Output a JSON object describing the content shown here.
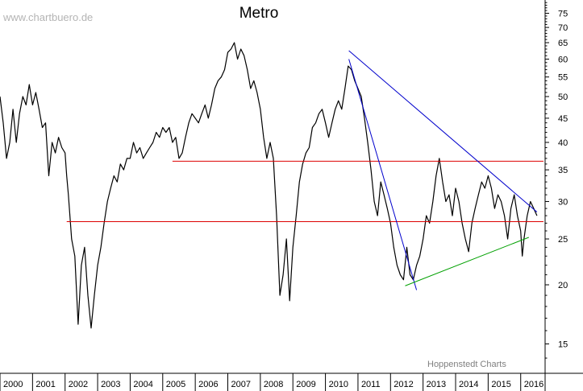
{
  "watermark": "www.chartbuero.de",
  "credit": "Hoppenstedt Charts",
  "chart_data": {
    "type": "line",
    "title": "Metro",
    "xlabel": "",
    "ylabel": "",
    "y_scale": "log",
    "ylim": [
      13,
      80
    ],
    "xlim": [
      2000.0,
      2016.75
    ],
    "grid": false,
    "y_ticks": [
      15,
      20,
      25,
      30,
      35,
      40,
      45,
      50,
      55,
      60,
      65,
      70,
      75
    ],
    "x_tick_labels": [
      "2000",
      "2001",
      "2002",
      "2003",
      "2004",
      "2005",
      "2006",
      "2007",
      "2008",
      "2009",
      "2010",
      "2011",
      "2012",
      "2013",
      "2014",
      "2015",
      "2016"
    ],
    "series": [
      {
        "color": "#000000",
        "points": [
          [
            2000.0,
            50
          ],
          [
            2000.1,
            44
          ],
          [
            2000.2,
            37
          ],
          [
            2000.3,
            40
          ],
          [
            2000.4,
            47
          ],
          [
            2000.5,
            40
          ],
          [
            2000.6,
            46
          ],
          [
            2000.7,
            50
          ],
          [
            2000.8,
            48
          ],
          [
            2000.9,
            53
          ],
          [
            2001.0,
            48
          ],
          [
            2001.1,
            51
          ],
          [
            2001.2,
            47
          ],
          [
            2001.3,
            43
          ],
          [
            2001.4,
            44
          ],
          [
            2001.5,
            34
          ],
          [
            2001.6,
            40
          ],
          [
            2001.7,
            38
          ],
          [
            2001.8,
            41
          ],
          [
            2001.9,
            39
          ],
          [
            2002.0,
            38
          ],
          [
            2002.05,
            34
          ],
          [
            2002.1,
            31
          ],
          [
            2002.2,
            25
          ],
          [
            2002.3,
            23
          ],
          [
            2002.4,
            16.5
          ],
          [
            2002.5,
            22
          ],
          [
            2002.6,
            24
          ],
          [
            2002.7,
            19
          ],
          [
            2002.8,
            16.2
          ],
          [
            2002.9,
            19
          ],
          [
            2003.0,
            22
          ],
          [
            2003.1,
            24
          ],
          [
            2003.2,
            27
          ],
          [
            2003.3,
            30
          ],
          [
            2003.4,
            32
          ],
          [
            2003.5,
            34
          ],
          [
            2003.6,
            33
          ],
          [
            2003.7,
            36
          ],
          [
            2003.8,
            35
          ],
          [
            2003.9,
            37
          ],
          [
            2004.0,
            37
          ],
          [
            2004.1,
            40
          ],
          [
            2004.2,
            38
          ],
          [
            2004.3,
            39
          ],
          [
            2004.4,
            37
          ],
          [
            2004.5,
            38
          ],
          [
            2004.6,
            39
          ],
          [
            2004.7,
            40
          ],
          [
            2004.8,
            42
          ],
          [
            2004.9,
            41
          ],
          [
            2005.0,
            43
          ],
          [
            2005.1,
            42
          ],
          [
            2005.2,
            43
          ],
          [
            2005.3,
            40
          ],
          [
            2005.4,
            41
          ],
          [
            2005.5,
            37
          ],
          [
            2005.6,
            38
          ],
          [
            2005.7,
            41
          ],
          [
            2005.8,
            44
          ],
          [
            2005.9,
            46
          ],
          [
            2006.0,
            45
          ],
          [
            2006.1,
            44
          ],
          [
            2006.2,
            46
          ],
          [
            2006.3,
            48
          ],
          [
            2006.4,
            45
          ],
          [
            2006.5,
            48
          ],
          [
            2006.6,
            52
          ],
          [
            2006.7,
            54
          ],
          [
            2006.8,
            55
          ],
          [
            2006.9,
            57
          ],
          [
            2007.0,
            62
          ],
          [
            2007.1,
            63
          ],
          [
            2007.2,
            65
          ],
          [
            2007.3,
            60
          ],
          [
            2007.4,
            63
          ],
          [
            2007.5,
            61
          ],
          [
            2007.6,
            57
          ],
          [
            2007.7,
            52
          ],
          [
            2007.8,
            54
          ],
          [
            2007.9,
            51
          ],
          [
            2008.0,
            47
          ],
          [
            2008.1,
            41
          ],
          [
            2008.2,
            37
          ],
          [
            2008.3,
            40
          ],
          [
            2008.4,
            37
          ],
          [
            2008.5,
            28
          ],
          [
            2008.6,
            19
          ],
          [
            2008.7,
            21
          ],
          [
            2008.8,
            25
          ],
          [
            2008.9,
            18.5
          ],
          [
            2009.0,
            24
          ],
          [
            2009.1,
            28
          ],
          [
            2009.2,
            33
          ],
          [
            2009.3,
            36
          ],
          [
            2009.4,
            38
          ],
          [
            2009.5,
            39
          ],
          [
            2009.6,
            43
          ],
          [
            2009.7,
            44
          ],
          [
            2009.8,
            46
          ],
          [
            2009.9,
            47
          ],
          [
            2010.0,
            44
          ],
          [
            2010.1,
            41
          ],
          [
            2010.2,
            44
          ],
          [
            2010.3,
            47
          ],
          [
            2010.4,
            49
          ],
          [
            2010.5,
            47
          ],
          [
            2010.6,
            52
          ],
          [
            2010.7,
            58
          ],
          [
            2010.8,
            57
          ],
          [
            2010.9,
            54
          ],
          [
            2011.0,
            52
          ],
          [
            2011.1,
            50
          ],
          [
            2011.2,
            45
          ],
          [
            2011.3,
            40
          ],
          [
            2011.4,
            35
          ],
          [
            2011.5,
            30
          ],
          [
            2011.6,
            28
          ],
          [
            2011.7,
            33
          ],
          [
            2011.8,
            31
          ],
          [
            2011.9,
            29
          ],
          [
            2012.0,
            27
          ],
          [
            2012.1,
            24
          ],
          [
            2012.2,
            22
          ],
          [
            2012.3,
            21
          ],
          [
            2012.4,
            20.5
          ],
          [
            2012.5,
            24
          ],
          [
            2012.6,
            21
          ],
          [
            2012.7,
            20.5
          ],
          [
            2012.8,
            22
          ],
          [
            2012.9,
            23
          ],
          [
            2013.0,
            25
          ],
          [
            2013.1,
            28
          ],
          [
            2013.2,
            27
          ],
          [
            2013.3,
            30
          ],
          [
            2013.4,
            34
          ],
          [
            2013.5,
            37
          ],
          [
            2013.6,
            33
          ],
          [
            2013.7,
            30
          ],
          [
            2013.8,
            31
          ],
          [
            2013.9,
            28
          ],
          [
            2014.0,
            32
          ],
          [
            2014.1,
            30
          ],
          [
            2014.2,
            27
          ],
          [
            2014.3,
            25
          ],
          [
            2014.4,
            23.5
          ],
          [
            2014.5,
            27
          ],
          [
            2014.6,
            29
          ],
          [
            2014.7,
            31
          ],
          [
            2014.8,
            33
          ],
          [
            2014.9,
            32
          ],
          [
            2015.0,
            34
          ],
          [
            2015.1,
            32
          ],
          [
            2015.2,
            29
          ],
          [
            2015.3,
            31
          ],
          [
            2015.4,
            30
          ],
          [
            2015.5,
            28
          ],
          [
            2015.6,
            25
          ],
          [
            2015.7,
            29
          ],
          [
            2015.8,
            31
          ],
          [
            2015.9,
            28
          ],
          [
            2016.0,
            26
          ],
          [
            2016.05,
            23
          ],
          [
            2016.1,
            25
          ],
          [
            2016.2,
            28
          ],
          [
            2016.3,
            30
          ],
          [
            2016.4,
            29
          ],
          [
            2016.5,
            28
          ]
        ]
      }
    ],
    "trend_lines": [
      {
        "color": "#dd0000",
        "points": [
          [
            2005.3,
            36.5
          ],
          [
            2016.7,
            36.5
          ]
        ]
      },
      {
        "color": "#dd0000",
        "points": [
          [
            2002.05,
            27.2
          ],
          [
            2016.7,
            27.2
          ]
        ]
      },
      {
        "color": "#0000cc",
        "points": [
          [
            2010.72,
            62.5
          ],
          [
            2016.5,
            28.5
          ]
        ]
      },
      {
        "color": "#0000cc",
        "points": [
          [
            2010.72,
            60.0
          ],
          [
            2012.8,
            19.5
          ]
        ]
      },
      {
        "color": "#00a000",
        "points": [
          [
            2012.45,
            19.9
          ],
          [
            2016.25,
            25.2
          ]
        ]
      }
    ]
  }
}
